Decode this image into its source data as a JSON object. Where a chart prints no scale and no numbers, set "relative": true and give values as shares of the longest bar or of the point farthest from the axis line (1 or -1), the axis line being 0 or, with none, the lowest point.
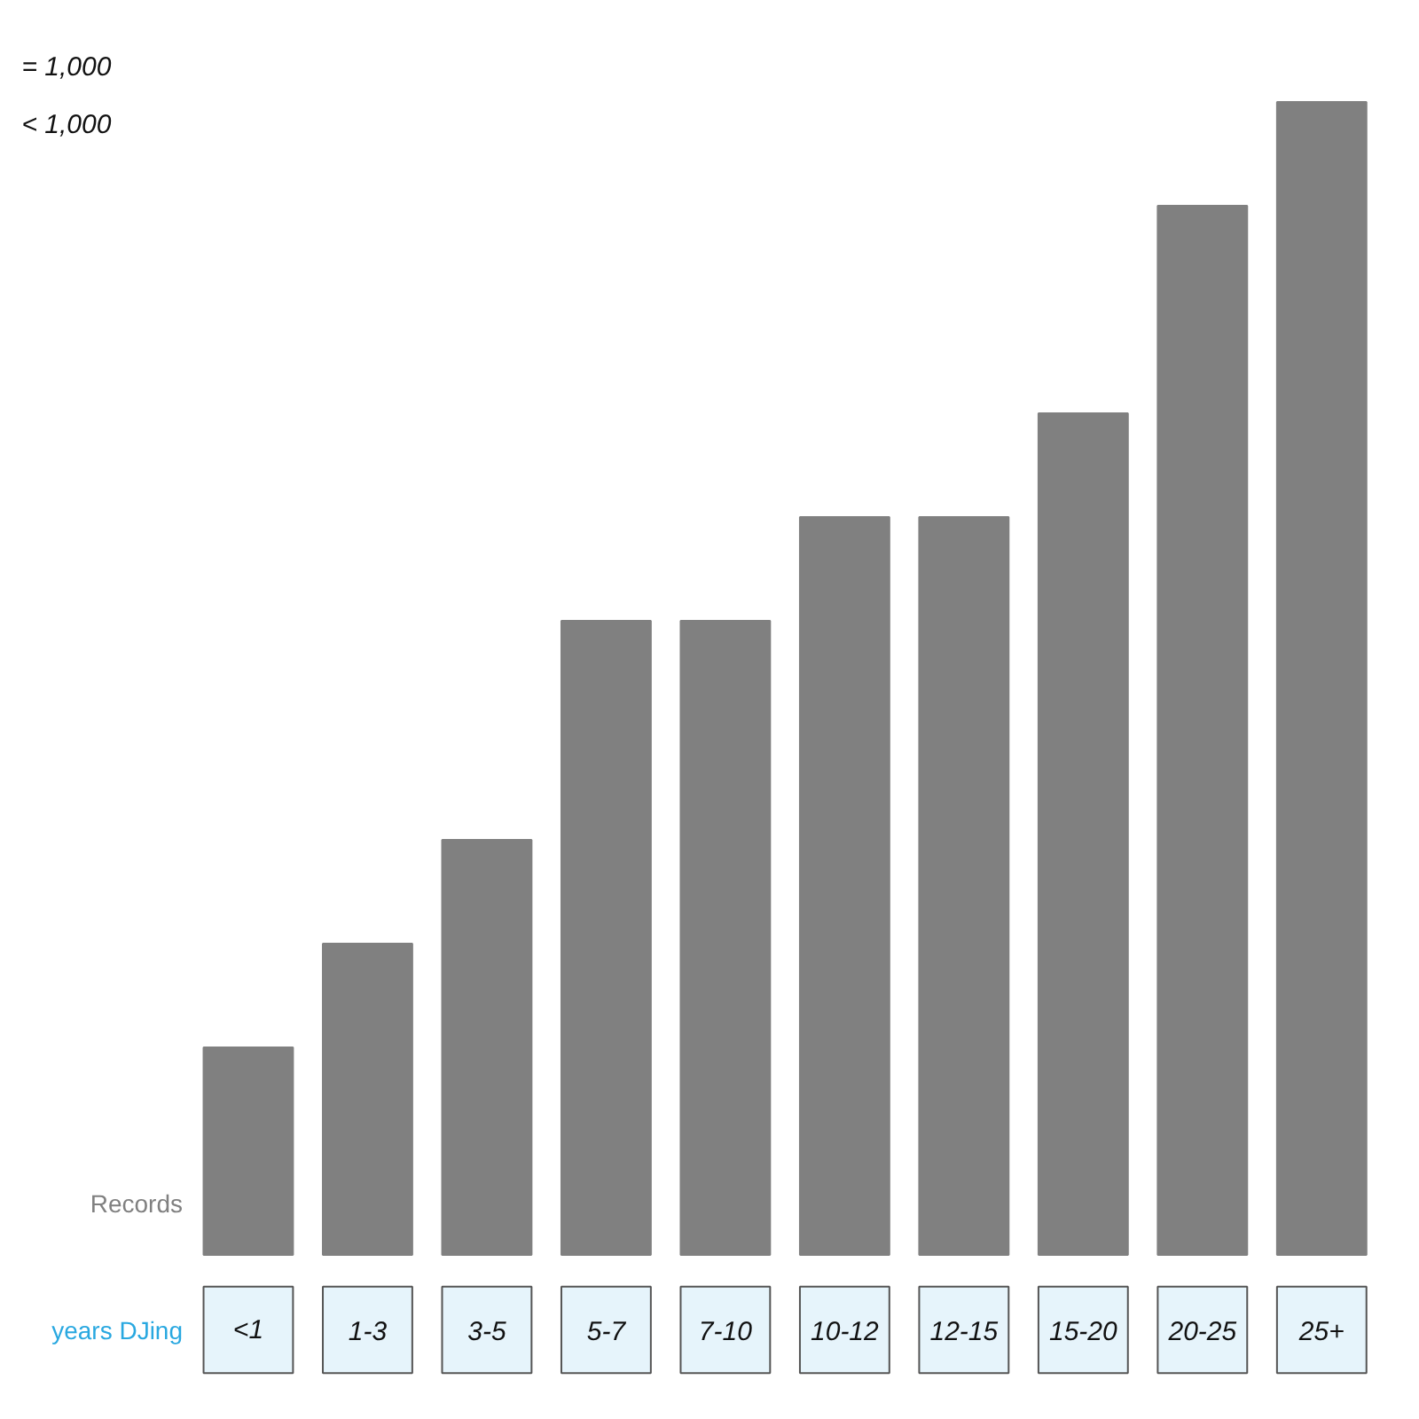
{
  "chart_data": {
    "type": "bar",
    "relative": true,
    "xlabel": "years DJing",
    "ylabel": "Records",
    "annotations": [
      "= 1,000",
      "< 1,000"
    ],
    "categories": [
      "<1",
      "1-3",
      "3-5",
      "5-7",
      "7-10",
      "10-12",
      "12-15",
      "15-20",
      "20-25",
      "25+"
    ],
    "series": [
      {
        "color": "#808080",
        "values": [
          0.18,
          0.27,
          0.36,
          0.55,
          0.55,
          0.64,
          0.64,
          0.73,
          0.91,
          1
        ]
      }
    ]
  }
}
